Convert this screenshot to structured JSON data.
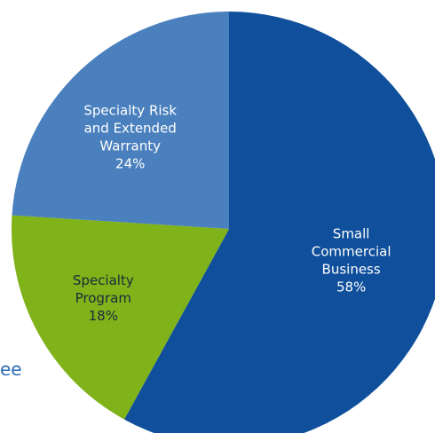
{
  "chart_data": {
    "type": "pie",
    "slices": [
      {
        "label": [
          "Small",
          "Commercial",
          "Business"
        ],
        "value": 58,
        "value_label": "58%",
        "color": "#0f4f9b",
        "label_color": "#ffffff"
      },
      {
        "label": [
          "Specialty",
          "Program"
        ],
        "value": 18,
        "value_label": "18%",
        "color": "#80b21a",
        "label_color": "#1b2a3a"
      },
      {
        "label": [
          "Specialty Risk",
          "and Extended",
          "Warranty"
        ],
        "value": 24,
        "value_label": "24%",
        "color": "#4a80bd",
        "label_color": "#ffffff"
      }
    ],
    "start": "12 o'clock",
    "direction": "clockwise"
  },
  "fragment": {
    "text": "ee",
    "color": "#2b6bb4"
  }
}
